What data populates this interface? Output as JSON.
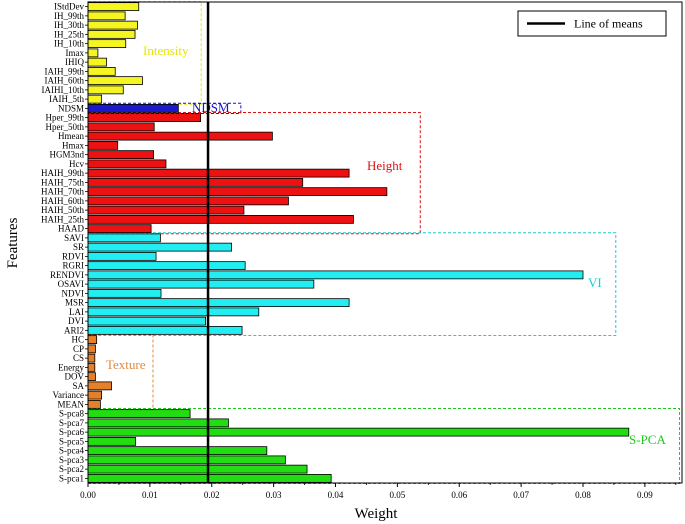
{
  "chart_data": {
    "type": "bar",
    "orientation": "horizontal",
    "xlabel": "Weight",
    "ylabel": "Features",
    "xlim": [
      0,
      0.096
    ],
    "x_ticks": [
      "0.00",
      "0.01",
      "0.02",
      "0.03",
      "0.04",
      "0.05",
      "0.06",
      "0.07",
      "0.08",
      "0.09"
    ],
    "mean_line": {
      "value": 0.0194,
      "label": "Line of means",
      "color": "#000000"
    },
    "legend_placement": "top-right",
    "grid": false,
    "categories": [
      "IStdDev",
      "IH_99th",
      "IH_30th",
      "IH_25th",
      "IH_10th",
      "Imax",
      "IHIQ",
      "IAIH_99th",
      "IAIH_60th",
      "IAIHI_10th",
      "IAIH_5th",
      "NDSM",
      "Hper_99th",
      "Hper_50th",
      "Hmean",
      "Hmax",
      "HGM3nd",
      "Hcv",
      "HAIH_99th",
      "HAIH_75th",
      "HAIH_70th",
      "HAIH_60th",
      "HAIH_50th",
      "HAIH_25th",
      "HAAD",
      "SAVI",
      "SR",
      "RDVI",
      "RGRI",
      "RENDVI",
      "OSAVI",
      "NDVI",
      "MSR",
      "LAI",
      "DVI",
      "ARI2",
      "HC",
      "CP",
      "CS",
      "Energy",
      "DOV",
      "SA",
      "Variance",
      "MEAN",
      "S-pca8",
      "S-pca7",
      "S-pca6",
      "S-pca5",
      "S-pca4",
      "S-pca3",
      "S-pca2",
      "S-pca1"
    ],
    "values": [
      0.0082,
      0.006,
      0.008,
      0.0076,
      0.0061,
      0.0016,
      0.003,
      0.0044,
      0.0088,
      0.0057,
      0.0022,
      0.0146,
      0.0182,
      0.0107,
      0.0298,
      0.0048,
      0.0106,
      0.0126,
      0.0422,
      0.0347,
      0.0483,
      0.0324,
      0.0252,
      0.0429,
      0.0102,
      0.0117,
      0.0232,
      0.011,
      0.0254,
      0.08,
      0.0365,
      0.0118,
      0.0422,
      0.0276,
      0.019,
      0.0249,
      0.0014,
      0.0012,
      0.0011,
      0.0011,
      0.0012,
      0.0038,
      0.0022,
      0.002,
      0.0165,
      0.0227,
      0.0874,
      0.0077,
      0.0289,
      0.0319,
      0.0354,
      0.0393
    ],
    "groups": [
      {
        "name": "Intensity",
        "start": 0,
        "end": 10,
        "color": "#e6e600",
        "fill": "#f5f522",
        "box_x_max": 0.0183
      },
      {
        "name": "NDSM",
        "start": 11,
        "end": 11,
        "color": "#1414c8",
        "fill": "#1a1acc",
        "box_x_max": 0.0247
      },
      {
        "name": "Height",
        "start": 12,
        "end": 24,
        "color": "#e01010",
        "fill": "#ee1111",
        "box_x_max": 0.0537
      },
      {
        "name": "VI",
        "start": 25,
        "end": 35,
        "color": "#20c8d0",
        "fill": "#22eef2",
        "box_x_max": 0.0853
      },
      {
        "name": "Texture",
        "start": 36,
        "end": 43,
        "color": "#e08a40",
        "fill": "#e5802a",
        "box_x_max": 0.0105
      },
      {
        "name": "S-PCA",
        "start": 44,
        "end": 51,
        "color": "#20c820",
        "fill": "#22dd11",
        "box_x_max": 0.0956
      }
    ]
  }
}
